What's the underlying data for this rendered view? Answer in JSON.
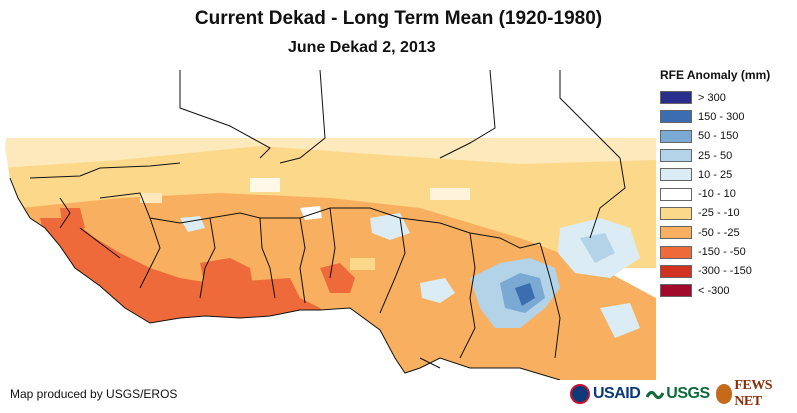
{
  "title": "Current Dekad - Long Term Mean (1920-1980)",
  "subtitle": "June Dekad 2, 2013",
  "legend": {
    "title": "RFE Anomaly (mm)",
    "items": [
      {
        "label": "> 300",
        "color": "#2a2f8e"
      },
      {
        "label": "150 - 300",
        "color": "#3c6db0"
      },
      {
        "label": "50 - 150",
        "color": "#7aaad4"
      },
      {
        "label": "25 - 50",
        "color": "#b3d3e8"
      },
      {
        "label": "10 - 25",
        "color": "#dcecf4"
      },
      {
        "label": "-10 - 10",
        "color": "#ffffff"
      },
      {
        "label": "-25 - -10",
        "color": "#fcd98a"
      },
      {
        "label": "-50 - -25",
        "color": "#f8b060"
      },
      {
        "label": "-150 - -50",
        "color": "#ef6a3a"
      },
      {
        "label": "-300 - -150",
        "color": "#d23220"
      },
      {
        "label": "< -300",
        "color": "#a10a2a"
      }
    ]
  },
  "credit": "Map produced by USGS/EROS",
  "logos": {
    "usaid": "USAID",
    "usgs": "USGS",
    "fews": "FEWS NET"
  }
}
